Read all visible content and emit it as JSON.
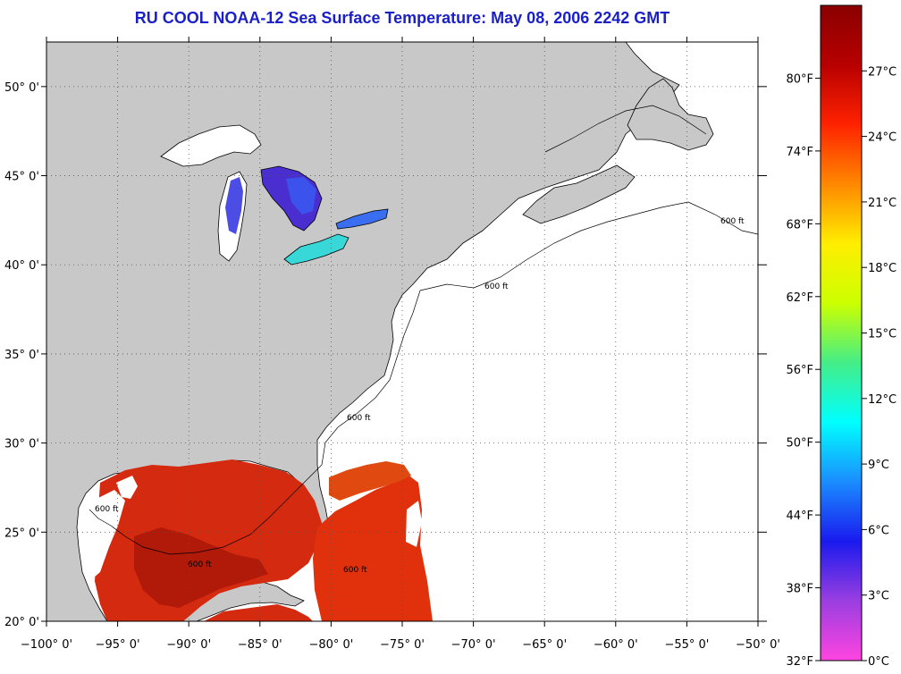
{
  "title": "RU COOL  NOAA-12  Sea Surface Temperature:  May 08, 2006 2242 GMT",
  "map": {
    "lon_range": [
      -100,
      -50
    ],
    "lat_range": [
      20,
      52.5
    ],
    "lon_ticks": [
      {
        "value": -100,
        "label": "−100° 0'"
      },
      {
        "value": -95,
        "label": "−95° 0'"
      },
      {
        "value": -90,
        "label": "−90° 0'"
      },
      {
        "value": -85,
        "label": "−85° 0'"
      },
      {
        "value": -80,
        "label": "−80° 0'"
      },
      {
        "value": -75,
        "label": "−75° 0'"
      },
      {
        "value": -70,
        "label": "−70° 0'"
      },
      {
        "value": -65,
        "label": "−65° 0'"
      },
      {
        "value": -60,
        "label": "−60° 0'"
      },
      {
        "value": -55,
        "label": "−55° 0'"
      },
      {
        "value": -50,
        "label": "−50° 0'"
      }
    ],
    "lat_ticks": [
      {
        "value": 20,
        "label": "20° 0'"
      },
      {
        "value": 25,
        "label": "25° 0'"
      },
      {
        "value": 30,
        "label": "30° 0'"
      },
      {
        "value": 35,
        "label": "35° 0'"
      },
      {
        "value": 40,
        "label": "40° 0'"
      },
      {
        "value": 45,
        "label": "45° 0'"
      },
      {
        "value": 50,
        "label": "50° 0'"
      }
    ],
    "contour_label": "600 ft",
    "land_color": "#c8c8c8",
    "water_color": "#ffffff",
    "grid": "dotted"
  },
  "colorbar": {
    "celsius_range": [
      0,
      30
    ],
    "fahrenheit_range": [
      32,
      86
    ],
    "celsius_labels": [
      {
        "value": 0,
        "label": "0°C"
      },
      {
        "value": 3,
        "label": "3°C"
      },
      {
        "value": 6,
        "label": "6°C"
      },
      {
        "value": 9,
        "label": "9°C"
      },
      {
        "value": 12,
        "label": "12°C"
      },
      {
        "value": 15,
        "label": "15°C"
      },
      {
        "value": 18,
        "label": "18°C"
      },
      {
        "value": 21,
        "label": "21°C"
      },
      {
        "value": 24,
        "label": "24°C"
      },
      {
        "value": 27,
        "label": "27°C"
      }
    ],
    "fahrenheit_labels": [
      {
        "value": 32,
        "label": "32°F"
      },
      {
        "value": 38,
        "label": "38°F"
      },
      {
        "value": 44,
        "label": "44°F"
      },
      {
        "value": 50,
        "label": "50°F"
      },
      {
        "value": 56,
        "label": "56°F"
      },
      {
        "value": 62,
        "label": "62°F"
      },
      {
        "value": 68,
        "label": "68°F"
      },
      {
        "value": 74,
        "label": "74°F"
      },
      {
        "value": 80,
        "label": "80°F"
      }
    ],
    "gradient_stops": [
      "#ff44e0",
      "#9b3ee0",
      "#1a1aee",
      "#1a8cff",
      "#00ffff",
      "#44ee88",
      "#ccff00",
      "#ffee00",
      "#ff8800",
      "#ff2200",
      "#b80000",
      "#8a0000"
    ]
  }
}
